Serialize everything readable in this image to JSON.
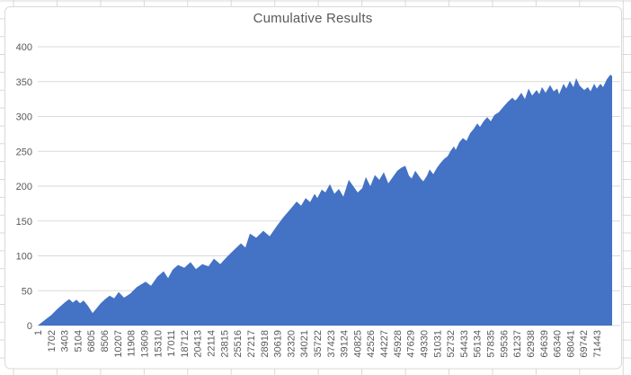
{
  "worksheet": {
    "gridline_color": "#D9D9D9",
    "background_color": "#FFFFFF"
  },
  "chart_data": {
    "type": "area",
    "title": "Cumulative Results",
    "title_color": "#595959",
    "legend": "none",
    "gridlines": "horizontal",
    "gridline_color": "#D9D9D9",
    "axis_label_color": "#595959",
    "chart_border_color": "#D9D9D9",
    "plot_bg": "#FFFFFF",
    "xlim": [
      1,
      73391
    ],
    "ylim": [
      0,
      400
    ],
    "y_ticks": [
      0,
      50,
      100,
      150,
      200,
      250,
      300,
      350,
      400
    ],
    "x_label_interval": 1701,
    "x_labels_rotation": -90,
    "x_tick_labels": [
      "1",
      "1702",
      "3403",
      "5104",
      "6805",
      "8506",
      "10207",
      "11908",
      "13609",
      "15310",
      "17011",
      "18712",
      "20413",
      "22114",
      "23815",
      "25516",
      "27217",
      "28918",
      "30619",
      "32320",
      "34021",
      "35722",
      "37423",
      "39124",
      "40825",
      "42526",
      "44227",
      "45928",
      "47629",
      "49330",
      "51031",
      "52732",
      "54433",
      "56134",
      "57835",
      "59536",
      "61237",
      "62938",
      "64639",
      "66340",
      "68041",
      "69742",
      "71443"
    ],
    "series": [
      {
        "name": "Cumulative Results",
        "fill_color": "#4472C4",
        "x": [
          1,
          920,
          1723,
          2527,
          3446,
          4020,
          4480,
          4939,
          5398,
          5858,
          6432,
          7006,
          7466,
          8040,
          8614,
          9188,
          9763,
          10337,
          11026,
          11830,
          12634,
          13208,
          13783,
          14472,
          15276,
          16080,
          16654,
          17229,
          17918,
          18722,
          19526,
          20215,
          21019,
          21823,
          22512,
          23316,
          24120,
          25039,
          25958,
          26532,
          27106,
          27910,
          28829,
          29633,
          30552,
          31356,
          32275,
          33079,
          33653,
          34228,
          34802,
          35376,
          35721,
          36295,
          36755,
          37329,
          37903,
          38478,
          39052,
          39741,
          40315,
          40889,
          41464,
          41923,
          42497,
          43072,
          43646,
          44220,
          44794,
          45369,
          45943,
          46517,
          46976,
          47436,
          47780,
          48240,
          48929,
          49273,
          49733,
          50077,
          50537,
          50996,
          51455,
          51915,
          52374,
          52719,
          53178,
          53408,
          53868,
          54327,
          54786,
          55246,
          55705,
          56164,
          56509,
          56968,
          57428,
          57887,
          58346,
          58921,
          59495,
          60069,
          60643,
          60988,
          61217,
          61792,
          62251,
          62710,
          63170,
          63744,
          64088,
          64433,
          64892,
          65467,
          65926,
          66385,
          66615,
          67189,
          67534,
          67993,
          68452,
          68797,
          69256,
          69830,
          70290,
          70634,
          71094,
          71438,
          71898,
          72242,
          72702,
          73161,
          73391
        ],
        "y": [
          0,
          8,
          15,
          24,
          33,
          38,
          33,
          37,
          32,
          36,
          28,
          18,
          24,
          32,
          38,
          43,
          39,
          48,
          40,
          46,
          55,
          59,
          63,
          57,
          70,
          78,
          68,
          80,
          87,
          83,
          91,
          81,
          88,
          85,
          96,
          88,
          98,
          108,
          118,
          112,
          132,
          126,
          136,
          128,
          143,
          155,
          167,
          178,
          172,
          183,
          177,
          189,
          183,
          195,
          191,
          203,
          189,
          196,
          185,
          209,
          200,
          191,
          197,
          213,
          200,
          216,
          209,
          220,
          204,
          213,
          222,
          227,
          229,
          215,
          211,
          222,
          211,
          207,
          215,
          224,
          217,
          226,
          233,
          239,
          243,
          250,
          257,
          252,
          263,
          269,
          265,
          276,
          282,
          290,
          285,
          293,
          299,
          293,
          302,
          306,
          314,
          321,
          327,
          323,
          325,
          334,
          325,
          340,
          330,
          338,
          332,
          342,
          334,
          345,
          336,
          340,
          332,
          347,
          340,
          351,
          342,
          355,
          344,
          338,
          342,
          336,
          347,
          340,
          347,
          342,
          353,
          360,
          358
        ]
      }
    ]
  }
}
